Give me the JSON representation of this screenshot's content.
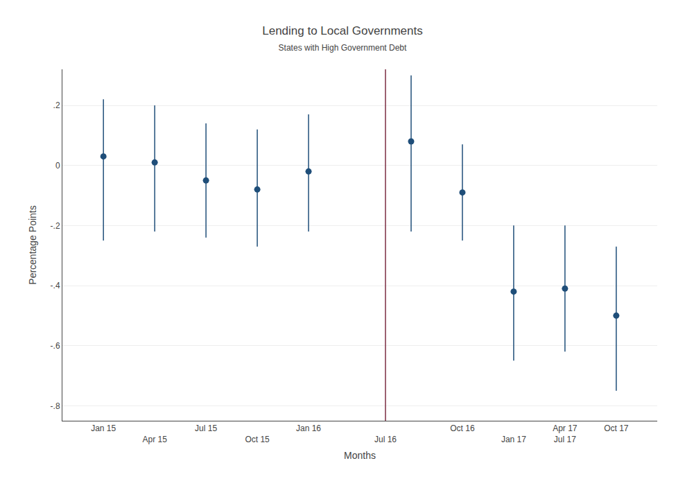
{
  "chart_data": {
    "type": "scatter",
    "title": "Lending to Local Governments",
    "subtitle": "States with High Government Debt",
    "x_label": "Months",
    "y_label": "Percentage Points",
    "x": [
      0,
      1,
      2,
      3,
      4,
      6,
      7,
      8,
      9,
      10
    ],
    "values": [
      0.03,
      0.01,
      -0.05,
      -0.08,
      -0.02,
      0.08,
      -0.09,
      -0.42,
      -0.41,
      -0.5
    ],
    "ci_lower": [
      -0.25,
      -0.22,
      -0.24,
      -0.27,
      -0.22,
      -0.22,
      -0.25,
      -0.65,
      -0.62,
      -0.75
    ],
    "ci_upper": [
      0.22,
      0.2,
      0.14,
      0.12,
      0.17,
      0.3,
      0.07,
      -0.2,
      -0.2,
      -0.27
    ],
    "color": "#1F4E79",
    "marker": "circle",
    "reference_line": {
      "x": 5.5,
      "color": "#7B2D42"
    },
    "xlim": [
      -0.8,
      10.8
    ],
    "xticks": [
      {
        "value": 0,
        "label": "Jan 15"
      },
      {
        "value": 1,
        "label": "Apr 15"
      },
      {
        "value": 2,
        "label": "Jul 15"
      },
      {
        "value": 3,
        "label": "Oct 15"
      },
      {
        "value": 4,
        "label": "Jan 16"
      },
      {
        "value": 5.5,
        "label": "Jul 16"
      },
      {
        "value": 7,
        "label": "Oct 16"
      },
      {
        "value": 8,
        "label": "Jan 17"
      },
      {
        "value": 9,
        "label": "Apr 17"
      },
      {
        "value": 9,
        "label": "Jul 17"
      },
      {
        "value": 10,
        "label": "Oct 17"
      }
    ],
    "ylim": [
      -0.85,
      0.32
    ],
    "yticks": [
      {
        "value": -0.8,
        "label": "-.8"
      },
      {
        "value": -0.6,
        "label": "-.6"
      },
      {
        "value": -0.4,
        "label": "-.4"
      },
      {
        "value": -0.2,
        "label": "-.2"
      },
      0,
      {
        "value": 0.2,
        "label": ".2"
      }
    ],
    "grid": "y"
  }
}
